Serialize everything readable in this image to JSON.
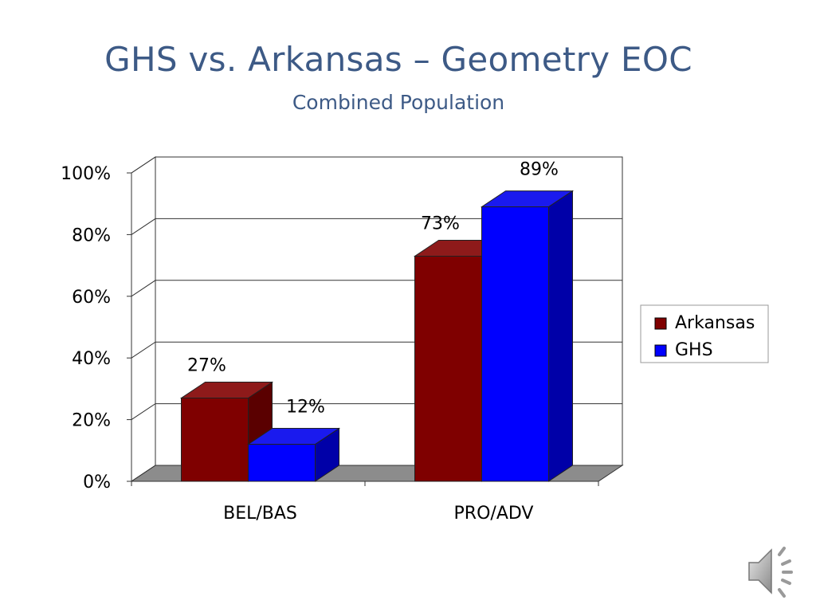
{
  "slide": {
    "title": "GHS vs. Arkansas – Geometry EOC",
    "subtitle": "Combined Population"
  },
  "chart_data": {
    "type": "bar",
    "categories": [
      "BEL/BAS",
      "PRO/ADV"
    ],
    "series": [
      {
        "name": "Arkansas",
        "values": [
          27,
          73
        ],
        "labels": [
          "27%",
          "73%"
        ],
        "color": "#7f0000"
      },
      {
        "name": "GHS",
        "values": [
          12,
          89
        ],
        "labels": [
          "12%",
          "89%"
        ],
        "color": "#0000ff"
      }
    ],
    "y_ticks": [
      "0%",
      "20%",
      "40%",
      "60%",
      "80%",
      "100%"
    ],
    "ylim": [
      0,
      100
    ],
    "grid": true,
    "three_d": true,
    "legend_position": "right"
  },
  "colors": {
    "title": "#3d5a86",
    "floor": "#8c8c8c",
    "arkansas_front": "#7f0000",
    "arkansas_top": "#8e1a1a",
    "arkansas_side": "#5a0000",
    "ghs_front": "#0000ff",
    "ghs_top": "#1a1aee",
    "ghs_side": "#0000a8"
  },
  "icons": {
    "audio": "speaker-icon"
  }
}
